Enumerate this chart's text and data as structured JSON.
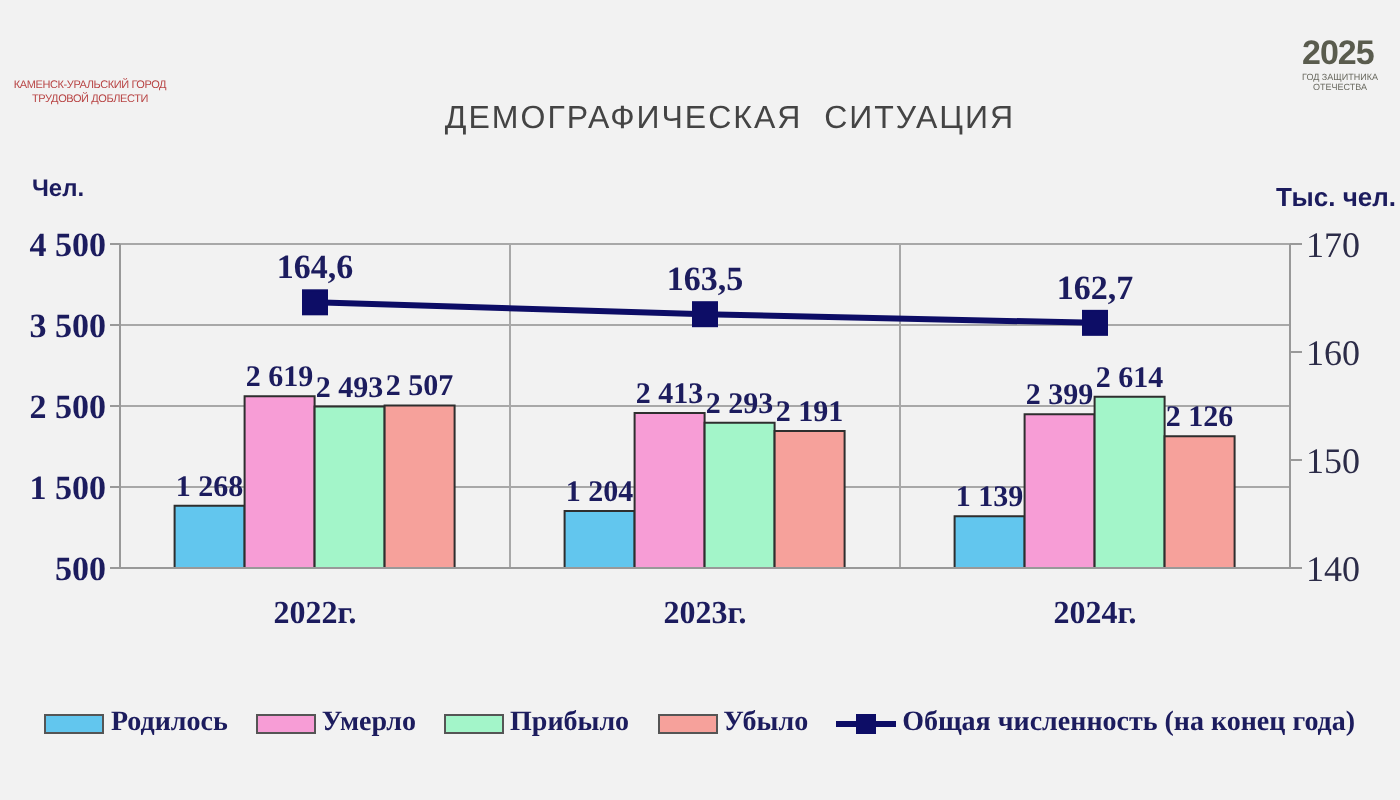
{
  "chart_data": {
    "type": "bar",
    "title": "ДЕМОГРАФИЧЕСКАЯ  СИТУАЦИЯ",
    "ylabel": "Чел.",
    "y2label": "Тыс. чел.",
    "annotations": [
      "КАМЕНСК-УРАЛЬСКИЙ ГОРОД ТРУДОВОЙ ДОБЛЕСТИ",
      "2025",
      "ГОД ЗАЩИТНИКА ОТЕЧЕСТВА"
    ],
    "categories": [
      "2022г.",
      "2023г.",
      "2024г."
    ],
    "series": [
      {
        "name": "Родилось",
        "color": "#62c6ee",
        "values": [
          1268,
          1204,
          1139
        ],
        "value_labels": [
          "1 268",
          "1 204",
          "1 139"
        ]
      },
      {
        "name": "Умерло",
        "color": "#f79dd6",
        "values": [
          2619,
          2413,
          2399
        ],
        "value_labels": [
          "2 619",
          "2 413",
          "2 399"
        ]
      },
      {
        "name": "Прибыло",
        "color": "#a3f5c9",
        "values": [
          2493,
          2293,
          2614
        ],
        "value_labels": [
          "2 493",
          "2 293",
          "2 614"
        ]
      },
      {
        "name": "Убыло",
        "color": "#f6a19b",
        "values": [
          2507,
          2191,
          2126
        ],
        "value_labels": [
          "2 507",
          "2 191",
          "2 126"
        ]
      },
      {
        "name": "Общая численность (на конец года)",
        "type": "line",
        "axis": "y2",
        "color": "#0d0d66",
        "values": [
          164.6,
          163.5,
          162.7
        ],
        "value_labels": [
          "164,6",
          "163,5",
          "162,7"
        ]
      }
    ],
    "ylim": [
      500,
      4500
    ],
    "yticks": [
      500,
      {
        "value": 1500,
        "label": "1 500"
      },
      {
        "value": 2500,
        "label": "2 500"
      },
      {
        "value": 3500,
        "label": "3 500"
      },
      {
        "value": 4500,
        "label": "4 500"
      }
    ],
    "y2lim": [
      140,
      170
    ],
    "y2ticks": [
      140,
      150,
      160,
      170
    ],
    "grid": true,
    "legend": "bottom",
    "marker": "square"
  }
}
